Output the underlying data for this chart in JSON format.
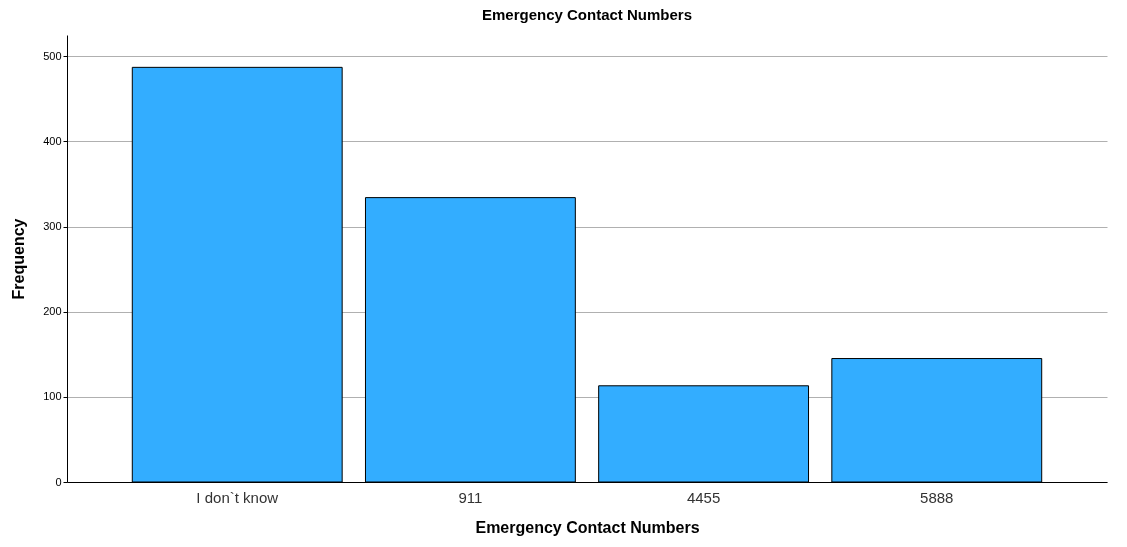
{
  "chart_data": {
    "type": "bar",
    "title": "Emergency Contact Numbers",
    "xlabel": "Emergency Contact Numbers",
    "ylabel": "Frequency",
    "categories": [
      "I don`t know",
      "911",
      "4455",
      "5888"
    ],
    "values": [
      487,
      334,
      113,
      145
    ],
    "color": "#33adff",
    "ylim": [
      0,
      525
    ],
    "yticks": [
      0,
      100,
      200,
      300,
      400,
      500
    ],
    "grid": "y"
  }
}
